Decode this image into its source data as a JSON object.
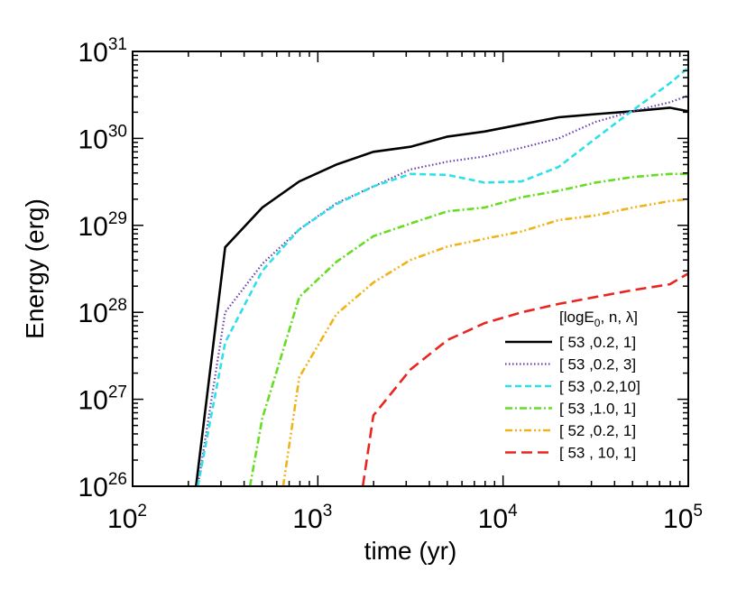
{
  "chart_data": {
    "type": "line",
    "xlabel": "time (yr)",
    "ylabel": "Energy (erg)",
    "xscale": "log",
    "yscale": "log",
    "xlim": [
      100,
      100000
    ],
    "ylim": [
      1e+26,
      1e+31
    ],
    "x_ticks": [
      {
        "value": 100,
        "base": "10",
        "exp": "2"
      },
      {
        "value": 1000,
        "base": "10",
        "exp": "3"
      },
      {
        "value": 10000,
        "base": "10",
        "exp": "4"
      },
      {
        "value": 100000,
        "base": "10",
        "exp": "5"
      }
    ],
    "y_ticks": [
      {
        "value": 1e+26,
        "base": "10",
        "exp": "26"
      },
      {
        "value": 1e+27,
        "base": "10",
        "exp": "27"
      },
      {
        "value": 1e+28,
        "base": "10",
        "exp": "28"
      },
      {
        "value": 1e+29,
        "base": "10",
        "exp": "29"
      },
      {
        "value": 1e+30,
        "base": "10",
        "exp": "30"
      },
      {
        "value": 1e+31,
        "base": "10",
        "exp": "31"
      }
    ],
    "grid": false,
    "legend_position": "bottom-right",
    "legend_title": "[logE",
    "legend_title_sub": "0",
    "legend_title_rest": ", n, λ]",
    "series": [
      {
        "name": "[ 53 ,0.2, 1]",
        "color": "#000000",
        "dash": "solid",
        "x": [
          220,
          316,
          501,
          794,
          1259,
          1995,
          3162,
          5012,
          7943,
          12589,
          19953,
          31623,
          50119,
          79433,
          100000
        ],
        "y": [
          1e+26,
          5.6e+28,
          1.6e+29,
          3.2e+29,
          5e+29,
          7e+29,
          8e+29,
          1.05e+30,
          1.2e+30,
          1.45e+30,
          1.75e+30,
          1.9e+30,
          2.05e+30,
          2.25e+30,
          2.05e+30
        ]
      },
      {
        "name": "[ 53 ,0.2, 3]",
        "color": "#6a3fb0",
        "dash": "dotted",
        "x": [
          225,
          316,
          501,
          794,
          1259,
          1995,
          3162,
          5012,
          7943,
          12589,
          19953,
          31623,
          50119,
          79433,
          100000
        ],
        "y": [
          1e+26,
          1e+28,
          3.6e+28,
          9e+28,
          1.8e+29,
          2.8e+29,
          4.4e+29,
          5.4e+29,
          6.2e+29,
          7.8e+29,
          1e+30,
          1.55e+30,
          2.05e+30,
          2.6e+30,
          3.1e+30
        ]
      },
      {
        "name": "[ 53 ,0.2,10]",
        "color": "#2fe0e8",
        "dash": "dashed",
        "x": [
          225,
          316,
          501,
          794,
          1259,
          1995,
          3162,
          5012,
          7943,
          12589,
          19953,
          31623,
          50119,
          79433,
          100000
        ],
        "y": [
          1e+26,
          4.5e+27,
          3e+28,
          9e+28,
          1.75e+29,
          2.8e+29,
          3.9e+29,
          3.8e+29,
          3.1e+29,
          3.2e+29,
          4.7e+29,
          1e+30,
          2.1e+30,
          4.3e+30,
          6.5e+30
        ]
      },
      {
        "name": "[ 53 ,1.0, 1]",
        "color": "#66dd22",
        "dash": "dashdot",
        "x": [
          430,
          501,
          794,
          1259,
          1995,
          3162,
          5012,
          7943,
          12589,
          19953,
          31623,
          50119,
          79433,
          100000
        ],
        "y": [
          1e+26,
          6e+26,
          1.5e+28,
          3.8e+28,
          7.5e+28,
          1.05e+29,
          1.45e+29,
          1.6e+29,
          2.1e+29,
          2.5e+29,
          3.1e+29,
          3.6e+29,
          3.9e+29,
          3.9e+29
        ]
      },
      {
        "name": "[ 52 ,0.2, 1]",
        "color": "#f0b31a",
        "dash": "dashdotdot",
        "x": [
          650,
          794,
          1259,
          1995,
          3162,
          5012,
          7943,
          12589,
          19953,
          31623,
          50119,
          79433,
          100000
        ],
        "y": [
          1e+26,
          1.8e+27,
          9.5e+27,
          2.2e+28,
          4e+28,
          5.7e+28,
          7e+28,
          8.5e+28,
          1.15e+29,
          1.3e+29,
          1.6e+29,
          1.9e+29,
          2e+29
        ]
      },
      {
        "name": "[ 53 , 10, 1]",
        "color": "#e8261f",
        "dash": "longdash",
        "x": [
          1750,
          1995,
          3162,
          5012,
          7943,
          12589,
          19953,
          31623,
          50119,
          79433,
          100000
        ],
        "y": [
          1e+26,
          6.5e+26,
          2.2e+27,
          4.8e+27,
          7.5e+27,
          1e+28,
          1.25e+28,
          1.5e+28,
          1.8e+28,
          2.1e+28,
          2.8e+28
        ]
      }
    ]
  }
}
